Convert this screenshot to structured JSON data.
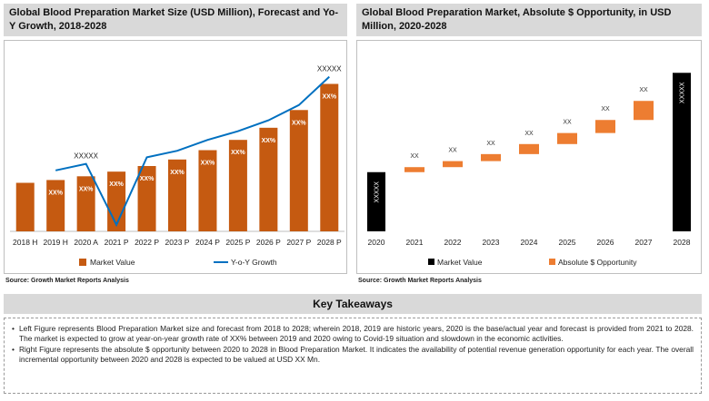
{
  "left_chart": {
    "title": "Global Blood Preparation Market Size (USD Million), Forecast and Yo-Y Growth, 2018-2028",
    "source": "Source: Growth Market Reports Analysis"
  },
  "right_chart": {
    "title": "Global Blood Preparation Market, Absolute $ Opportunity, in USD Million, 2020-2028",
    "source": "Source: Growth Market Reports Analysis"
  },
  "key_takeaways": {
    "heading": "Key Takeaways",
    "points": [
      "Left Figure represents Blood Preparation Market size and forecast from 2018 to 2028; wherein 2018, 2019 are historic years, 2020 is the base/actual year and forecast is provided from 2021 to 2028. The market is expected to grow at year-on-year growth rate of XX% between 2019 and 2020 owing to Covid-19 situation and slowdown in the economic activities.",
      "Right Figure represents the absolute $ opportunity between 2020 to 2028 in Blood Preparation Market. It indicates the availability of potential revenue generation opportunity for each year. The overall incremental opportunity between 2020 and 2028 is expected to be valued at USD XX Mn."
    ]
  },
  "colors": {
    "bar": "#c55a11",
    "line": "#0070c0",
    "black_bar": "#000000",
    "opportunity": "#ed7d31"
  },
  "chart_data": [
    {
      "type": "bar",
      "categories": [
        "2018 H",
        "2019 H",
        "2020 A",
        "2021 P",
        "2022 P",
        "2023 P",
        "2024 P",
        "2025 P",
        "2026 P",
        "2027 P",
        "2028 P"
      ],
      "series": [
        {
          "name": "Market Value",
          "values": [
            52,
            55,
            59,
            64,
            70,
            77,
            87,
            98,
            111,
            130,
            158
          ],
          "data_labels": [
            "",
            "XX%",
            "XX%",
            "XX%",
            "XX%",
            "XX%",
            "XX%",
            "XX%",
            "XX%",
            "XX%",
            "XX%"
          ]
        },
        {
          "name": "Y-o-Y Growth",
          "type": "line",
          "values": [
            null,
            3,
            6,
            -22,
            9,
            12,
            17,
            21,
            26,
            33,
            46
          ]
        }
      ],
      "annotations": [
        {
          "category": "2020 A",
          "text": "XXXXX"
        },
        {
          "category": "2028 P",
          "text": "XXXXX"
        }
      ],
      "bar_ylim": [
        0,
        175
      ],
      "line_ylim": [
        -25,
        50
      ],
      "legend": [
        "Market Value",
        "Y-o-Y Growth"
      ],
      "legend_position": "bottom",
      "grid": false
    },
    {
      "type": "bar",
      "subtype": "waterfall",
      "categories": [
        "2020",
        "2021",
        "2022",
        "2023",
        "2024",
        "2025",
        "2026",
        "2027",
        "2028"
      ],
      "series": [
        {
          "name": "Market Value",
          "values": [
            59,
            null,
            null,
            null,
            null,
            null,
            null,
            null,
            158
          ],
          "data_labels": [
            "XXXXX",
            "",
            "",
            "",
            "",
            "",
            "",
            "",
            "XXXXX"
          ]
        },
        {
          "name": "Absolute $ Opportunity",
          "base": [
            null,
            59,
            64,
            70,
            77,
            87,
            98,
            111,
            null
          ],
          "values": [
            null,
            5,
            6,
            7,
            10,
            11,
            13,
            19,
            null
          ],
          "data_labels": [
            "",
            "XX",
            "XX",
            "XX",
            "XX",
            "XX",
            "XX",
            "XX",
            ""
          ]
        }
      ],
      "ylim": [
        0,
        170
      ],
      "legend": [
        "Market Value",
        "Absolute $ Opportunity"
      ],
      "legend_position": "bottom",
      "grid": false
    }
  ]
}
